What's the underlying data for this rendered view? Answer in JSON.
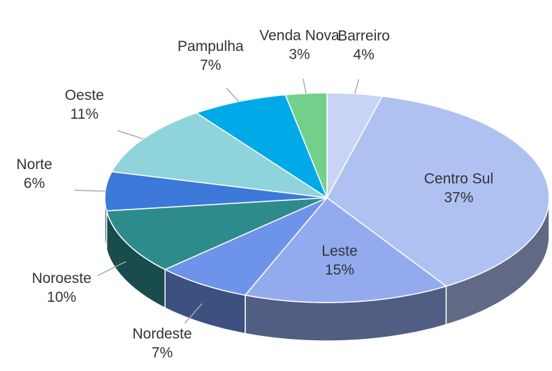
{
  "chart_data": {
    "type": "pie3d",
    "categories": [
      "Barreiro",
      "Centro Sul",
      "Leste",
      "Nordeste",
      "Noroeste",
      "Norte",
      "Oeste",
      "Pampulha",
      "Venda Nova"
    ],
    "values": [
      4,
      37,
      15,
      7,
      10,
      6,
      11,
      7,
      3
    ],
    "value_labels": [
      "4%",
      "37%",
      "15%",
      "7%",
      "10%",
      "6%",
      "11%",
      "7%",
      "3%"
    ],
    "colors": [
      "#c7d4f6",
      "#afc1f1",
      "#93abee",
      "#6e93ea",
      "#2e8b8b",
      "#3c79d9",
      "#8fd3db",
      "#00aae9",
      "#72d08b"
    ]
  }
}
